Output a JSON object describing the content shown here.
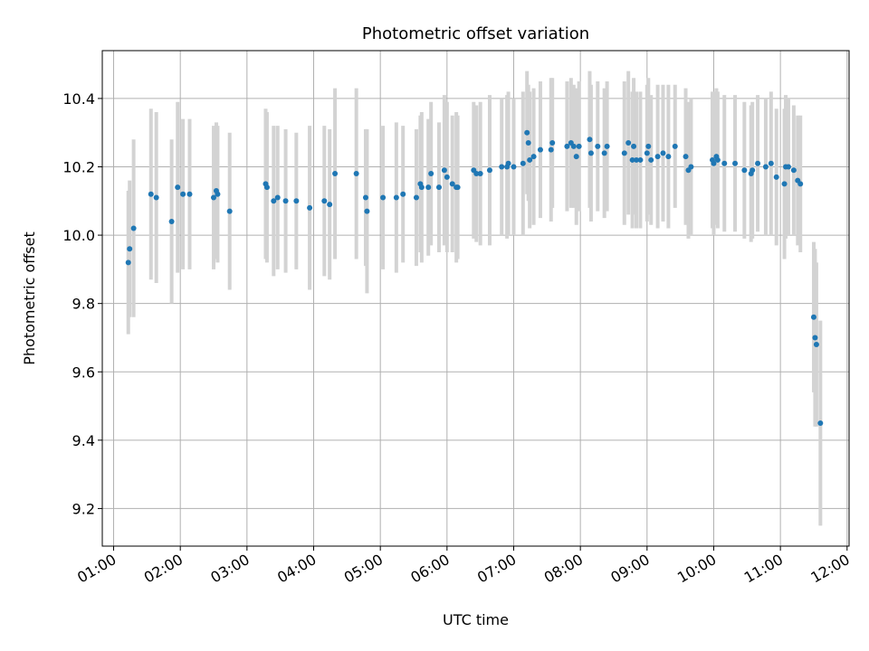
{
  "chart_data": {
    "type": "scatter",
    "title": "Photometric offset variation",
    "xlabel": "UTC time",
    "ylabel": "Photometric offset",
    "x_unit": "hours UTC",
    "xlim": [
      0.83,
      12.03
    ],
    "ylim": [
      9.09,
      10.54
    ],
    "grid": true,
    "x_ticks": [
      {
        "value": 1,
        "label": "01:00"
      },
      {
        "value": 2,
        "label": "02:00"
      },
      {
        "value": 3,
        "label": "03:00"
      },
      {
        "value": 4,
        "label": "04:00"
      },
      {
        "value": 5,
        "label": "05:00"
      },
      {
        "value": 6,
        "label": "06:00"
      },
      {
        "value": 7,
        "label": "07:00"
      },
      {
        "value": 8,
        "label": "08:00"
      },
      {
        "value": 9,
        "label": "09:00"
      },
      {
        "value": 10,
        "label": "10:00"
      },
      {
        "value": 11,
        "label": "11:00"
      },
      {
        "value": 12,
        "label": "12:00"
      }
    ],
    "y_ticks": [
      {
        "value": 9.2,
        "label": "9.2"
      },
      {
        "value": 9.4,
        "label": "9.4"
      },
      {
        "value": 9.6,
        "label": "9.6"
      },
      {
        "value": 9.8,
        "label": "9.8"
      },
      {
        "value": 10.0,
        "label": "10.0"
      },
      {
        "value": 10.2,
        "label": "10.2"
      },
      {
        "value": 10.4,
        "label": "10.4"
      }
    ],
    "colors": {
      "points": "#1f77b4",
      "errorbars": "#d3d3d3",
      "grid": "#b0b0b0",
      "axes": "#000000"
    },
    "series": [
      {
        "name": "Photometric offset",
        "points": [
          {
            "x": 1.22,
            "y": 9.92,
            "err": 0.21
          },
          {
            "x": 1.24,
            "y": 9.96,
            "err": 0.2
          },
          {
            "x": 1.3,
            "y": 10.02,
            "err": 0.26
          },
          {
            "x": 1.56,
            "y": 10.12,
            "err": 0.25
          },
          {
            "x": 1.64,
            "y": 10.11,
            "err": 0.25
          },
          {
            "x": 1.87,
            "y": 10.04,
            "err": 0.24
          },
          {
            "x": 1.96,
            "y": 10.14,
            "err": 0.25
          },
          {
            "x": 2.04,
            "y": 10.12,
            "err": 0.22
          },
          {
            "x": 2.14,
            "y": 10.12,
            "err": 0.22
          },
          {
            "x": 2.5,
            "y": 10.11,
            "err": 0.21
          },
          {
            "x": 2.54,
            "y": 10.13,
            "err": 0.2
          },
          {
            "x": 2.56,
            "y": 10.12,
            "err": 0.2
          },
          {
            "x": 2.74,
            "y": 10.07,
            "err": 0.23
          },
          {
            "x": 3.28,
            "y": 10.15,
            "err": 0.22
          },
          {
            "x": 3.3,
            "y": 10.14,
            "err": 0.22
          },
          {
            "x": 3.4,
            "y": 10.1,
            "err": 0.22
          },
          {
            "x": 3.46,
            "y": 10.11,
            "err": 0.21
          },
          {
            "x": 3.58,
            "y": 10.1,
            "err": 0.21
          },
          {
            "x": 3.74,
            "y": 10.1,
            "err": 0.2
          },
          {
            "x": 3.94,
            "y": 10.08,
            "err": 0.24
          },
          {
            "x": 4.16,
            "y": 10.1,
            "err": 0.22
          },
          {
            "x": 4.24,
            "y": 10.09,
            "err": 0.22
          },
          {
            "x": 4.32,
            "y": 10.18,
            "err": 0.25
          },
          {
            "x": 4.64,
            "y": 10.18,
            "err": 0.25
          },
          {
            "x": 4.78,
            "y": 10.11,
            "err": 0.2
          },
          {
            "x": 4.8,
            "y": 10.07,
            "err": 0.24
          },
          {
            "x": 5.04,
            "y": 10.11,
            "err": 0.21
          },
          {
            "x": 5.24,
            "y": 10.11,
            "err": 0.22
          },
          {
            "x": 5.34,
            "y": 10.12,
            "err": 0.2
          },
          {
            "x": 5.54,
            "y": 10.11,
            "err": 0.2
          },
          {
            "x": 5.6,
            "y": 10.15,
            "err": 0.2
          },
          {
            "x": 5.62,
            "y": 10.14,
            "err": 0.22
          },
          {
            "x": 5.72,
            "y": 10.14,
            "err": 0.2
          },
          {
            "x": 5.76,
            "y": 10.18,
            "err": 0.21
          },
          {
            "x": 5.88,
            "y": 10.14,
            "err": 0.19
          },
          {
            "x": 5.96,
            "y": 10.19,
            "err": 0.22
          },
          {
            "x": 6.0,
            "y": 10.17,
            "err": 0.22
          },
          {
            "x": 6.08,
            "y": 10.15,
            "err": 0.2
          },
          {
            "x": 6.14,
            "y": 10.14,
            "err": 0.22
          },
          {
            "x": 6.16,
            "y": 10.14,
            "err": 0.21
          },
          {
            "x": 6.4,
            "y": 10.19,
            "err": 0.2
          },
          {
            "x": 6.44,
            "y": 10.18,
            "err": 0.2
          },
          {
            "x": 6.5,
            "y": 10.18,
            "err": 0.21
          },
          {
            "x": 6.64,
            "y": 10.19,
            "err": 0.22
          },
          {
            "x": 6.82,
            "y": 10.2,
            "err": 0.2
          },
          {
            "x": 6.9,
            "y": 10.2,
            "err": 0.21
          },
          {
            "x": 6.92,
            "y": 10.21,
            "err": 0.21
          },
          {
            "x": 7.0,
            "y": 10.2,
            "err": 0.2
          },
          {
            "x": 7.14,
            "y": 10.21,
            "err": 0.21
          },
          {
            "x": 7.2,
            "y": 10.3,
            "err": 0.18
          },
          {
            "x": 7.22,
            "y": 10.27,
            "err": 0.17
          },
          {
            "x": 7.24,
            "y": 10.22,
            "err": 0.2
          },
          {
            "x": 7.3,
            "y": 10.23,
            "err": 0.2
          },
          {
            "x": 7.4,
            "y": 10.25,
            "err": 0.2
          },
          {
            "x": 7.56,
            "y": 10.25,
            "err": 0.21
          },
          {
            "x": 7.58,
            "y": 10.27,
            "err": 0.19
          },
          {
            "x": 7.8,
            "y": 10.26,
            "err": 0.19
          },
          {
            "x": 7.86,
            "y": 10.27,
            "err": 0.19
          },
          {
            "x": 7.9,
            "y": 10.26,
            "err": 0.18
          },
          {
            "x": 7.94,
            "y": 10.23,
            "err": 0.2
          },
          {
            "x": 7.98,
            "y": 10.26,
            "err": 0.19
          },
          {
            "x": 8.14,
            "y": 10.28,
            "err": 0.2
          },
          {
            "x": 8.16,
            "y": 10.24,
            "err": 0.2
          },
          {
            "x": 8.26,
            "y": 10.26,
            "err": 0.19
          },
          {
            "x": 8.36,
            "y": 10.24,
            "err": 0.19
          },
          {
            "x": 8.4,
            "y": 10.26,
            "err": 0.19
          },
          {
            "x": 8.66,
            "y": 10.24,
            "err": 0.21
          },
          {
            "x": 8.72,
            "y": 10.27,
            "err": 0.21
          },
          {
            "x": 8.78,
            "y": 10.22,
            "err": 0.2
          },
          {
            "x": 8.8,
            "y": 10.26,
            "err": 0.2
          },
          {
            "x": 8.84,
            "y": 10.22,
            "err": 0.2
          },
          {
            "x": 8.9,
            "y": 10.22,
            "err": 0.2
          },
          {
            "x": 9.0,
            "y": 10.24,
            "err": 0.2
          },
          {
            "x": 9.02,
            "y": 10.26,
            "err": 0.2
          },
          {
            "x": 9.06,
            "y": 10.22,
            "err": 0.19
          },
          {
            "x": 9.16,
            "y": 10.23,
            "err": 0.21
          },
          {
            "x": 9.24,
            "y": 10.24,
            "err": 0.2
          },
          {
            "x": 9.32,
            "y": 10.23,
            "err": 0.21
          },
          {
            "x": 9.42,
            "y": 10.26,
            "err": 0.18
          },
          {
            "x": 9.58,
            "y": 10.23,
            "err": 0.2
          },
          {
            "x": 9.62,
            "y": 10.19,
            "err": 0.2
          },
          {
            "x": 9.66,
            "y": 10.2,
            "err": 0.2
          },
          {
            "x": 9.98,
            "y": 10.22,
            "err": 0.2
          },
          {
            "x": 10.0,
            "y": 10.21,
            "err": 0.21
          },
          {
            "x": 10.04,
            "y": 10.23,
            "err": 0.2
          },
          {
            "x": 10.06,
            "y": 10.22,
            "err": 0.2
          },
          {
            "x": 10.16,
            "y": 10.21,
            "err": 0.2
          },
          {
            "x": 10.32,
            "y": 10.21,
            "err": 0.2
          },
          {
            "x": 10.46,
            "y": 10.19,
            "err": 0.2
          },
          {
            "x": 10.56,
            "y": 10.18,
            "err": 0.2
          },
          {
            "x": 10.58,
            "y": 10.19,
            "err": 0.2
          },
          {
            "x": 10.66,
            "y": 10.21,
            "err": 0.2
          },
          {
            "x": 10.78,
            "y": 10.2,
            "err": 0.2
          },
          {
            "x": 10.86,
            "y": 10.21,
            "err": 0.21
          },
          {
            "x": 10.94,
            "y": 10.17,
            "err": 0.2
          },
          {
            "x": 11.06,
            "y": 10.15,
            "err": 0.22
          },
          {
            "x": 11.08,
            "y": 10.2,
            "err": 0.21
          },
          {
            "x": 11.12,
            "y": 10.2,
            "err": 0.2
          },
          {
            "x": 11.2,
            "y": 10.19,
            "err": 0.19
          },
          {
            "x": 11.26,
            "y": 10.16,
            "err": 0.19
          },
          {
            "x": 11.3,
            "y": 10.15,
            "err": 0.2
          },
          {
            "x": 11.5,
            "y": 9.76,
            "err": 0.22
          },
          {
            "x": 11.52,
            "y": 9.7,
            "err": 0.26
          },
          {
            "x": 11.54,
            "y": 9.68,
            "err": 0.24
          },
          {
            "x": 11.6,
            "y": 9.45,
            "err": 0.3
          }
        ]
      }
    ]
  }
}
